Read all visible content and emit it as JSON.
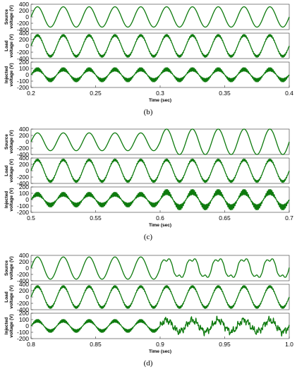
{
  "chart_data": [
    {
      "type": "line",
      "caption": "(b)",
      "xlabel": "Time (sec)",
      "xlim": [
        0.2,
        0.4
      ],
      "xticks": [
        "0.2",
        "0.25",
        "0.3",
        "0.35",
        "0.4"
      ],
      "panels": [
        {
          "ylabel": "Source voltage (V)",
          "ylim": [
            -400,
            400
          ],
          "yticks": [
            "400",
            "200",
            "0",
            "-200",
            "-400"
          ],
          "cycles": 10,
          "segments": [
            {
              "t_start": 0.2,
              "t_end": 0.4,
              "amplitude": 320,
              "ripple_amplitude": 0,
              "waveform": "sine"
            }
          ]
        },
        {
          "ylabel": "Load voltage (V)",
          "ylim": [
            -400,
            400
          ],
          "yticks": [
            "400",
            "200",
            "0",
            "-200",
            "-400"
          ],
          "cycles": 10,
          "segments": [
            {
              "t_start": 0.2,
              "t_end": 0.4,
              "amplitude": 330,
              "ripple_amplitude": 35,
              "waveform": "sine"
            }
          ]
        },
        {
          "ylabel": "Injected voltage (V)",
          "ylim": [
            -200,
            200
          ],
          "yticks": [
            "200",
            "100",
            "0",
            "-100",
            "-200"
          ],
          "cycles": 10,
          "segments": [
            {
              "t_start": 0.2,
              "t_end": 0.4,
              "amplitude": 85,
              "ripple_amplitude": 30,
              "waveform": "sine"
            }
          ]
        }
      ]
    },
    {
      "type": "line",
      "caption": "(c)",
      "xlabel": "Time (sec)",
      "xlim": [
        0.5,
        0.7
      ],
      "xticks": [
        "0.5",
        "0.55",
        "0.6",
        "0.65",
        "0.7"
      ],
      "panels": [
        {
          "ylabel": "Source voltage (V)",
          "ylim": [
            -400,
            400
          ],
          "yticks": [
            "400",
            "200",
            "0",
            "-200",
            "-400"
          ],
          "cycles": 10,
          "segments": [
            {
              "t_start": 0.5,
              "t_end": 0.6,
              "amplitude": 280,
              "ripple_amplitude": 0,
              "waveform": "sine"
            },
            {
              "t_start": 0.6,
              "t_end": 0.7,
              "amplitude": 400,
              "ripple_amplitude": 0,
              "waveform": "sine"
            }
          ]
        },
        {
          "ylabel": "Load voltage (V)",
          "ylim": [
            -400,
            400
          ],
          "yticks": [
            "400",
            "200",
            "0",
            "-200",
            "-400"
          ],
          "cycles": 10,
          "segments": [
            {
              "t_start": 0.5,
              "t_end": 0.7,
              "amplitude": 340,
              "ripple_amplitude": 35,
              "waveform": "sine"
            }
          ]
        },
        {
          "ylabel": "Injected voltage (V)",
          "ylim": [
            -200,
            200
          ],
          "yticks": [
            "200",
            "100",
            "0",
            "-100",
            "-200"
          ],
          "cycles": 10,
          "segments": [
            {
              "t_start": 0.5,
              "t_end": 0.6,
              "amplitude": 85,
              "ripple_amplitude": 35,
              "waveform": "sine"
            },
            {
              "t_start": 0.6,
              "t_end": 0.7,
              "amplitude": 120,
              "ripple_amplitude": 45,
              "waveform": "sine"
            }
          ]
        }
      ]
    },
    {
      "type": "line",
      "caption": "(d)",
      "xlabel": "Time (sec)",
      "xlim": [
        0.8,
        1.0
      ],
      "xticks": [
        "0.8",
        "0.85",
        "0.9",
        "0.95",
        "1.0"
      ],
      "panels": [
        {
          "ylabel": "Source voltage (V)",
          "ylim": [
            -400,
            400
          ],
          "yticks": [
            "400",
            "200",
            "0",
            "-200",
            "-400"
          ],
          "cycles": 10,
          "segments": [
            {
              "t_start": 0.8,
              "t_end": 0.9,
              "amplitude": 350,
              "ripple_amplitude": 0,
              "waveform": "sine"
            },
            {
              "t_start": 0.9,
              "t_end": 1.0,
              "amplitude": 260,
              "ripple_amplitude": 0,
              "waveform": "distorted"
            }
          ]
        },
        {
          "ylabel": "Load voltage (V)",
          "ylim": [
            -400,
            400
          ],
          "yticks": [
            "400",
            "200",
            "0",
            "-200",
            "-400"
          ],
          "cycles": 10,
          "segments": [
            {
              "t_start": 0.8,
              "t_end": 1.0,
              "amplitude": 330,
              "ripple_amplitude": 35,
              "waveform": "sine"
            }
          ]
        },
        {
          "ylabel": "Injected voltage (V)",
          "ylim": [
            -200,
            200
          ],
          "yticks": [
            "200",
            "100",
            "0",
            "-100",
            "-200"
          ],
          "cycles": 10,
          "segments": [
            {
              "t_start": 0.8,
              "t_end": 0.9,
              "amplitude": 80,
              "ripple_amplitude": 25,
              "waveform": "sine"
            },
            {
              "t_start": 0.9,
              "t_end": 1.0,
              "amplitude": 90,
              "ripple_amplitude": 60,
              "waveform": "noisy"
            }
          ]
        }
      ]
    }
  ]
}
